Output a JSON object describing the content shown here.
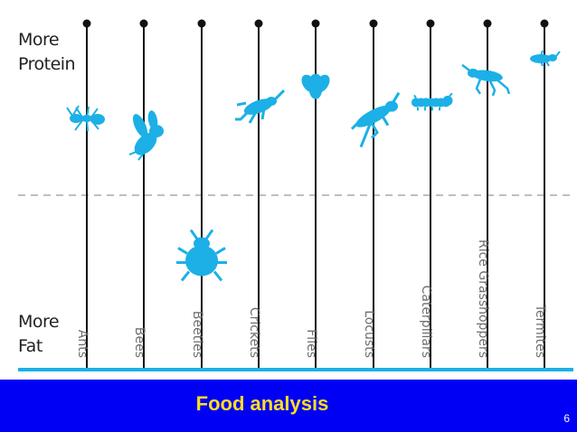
{
  "axis": {
    "top_label": [
      "More",
      "Protein"
    ],
    "bottom_label": [
      "More",
      "Fat"
    ]
  },
  "insects": [
    {
      "name": "Ants",
      "level": 0.72,
      "icon": "ant-icon"
    },
    {
      "name": "Bees",
      "level": 0.55,
      "icon": "bee-icon"
    },
    {
      "name": "Beetles",
      "level": -0.58,
      "icon": "beetle-icon"
    },
    {
      "name": "Crickets",
      "level": 0.83,
      "icon": "cricket-icon"
    },
    {
      "name": "Flies",
      "level": 1.02,
      "icon": "fly-icon"
    },
    {
      "name": "Locusts",
      "level": 0.74,
      "icon": "locust-icon"
    },
    {
      "name": "Caterpillars",
      "level": 0.87,
      "icon": "caterpillar-icon"
    },
    {
      "name": "Rice Grasshoppers",
      "level": 1.12,
      "icon": "grasshopper-icon"
    },
    {
      "name": "Termites",
      "level": 1.28,
      "icon": "termite-icon"
    }
  ],
  "colors": {
    "insect": "#1cb0e6",
    "baseline": "#1cb0e6",
    "footer_bg": "#0000f5",
    "footer_text": "#ffde1f",
    "stem": "#111111",
    "midline": "#aaaaaa"
  },
  "footer": {
    "title": "Food analysis",
    "page_number": "6"
  }
}
